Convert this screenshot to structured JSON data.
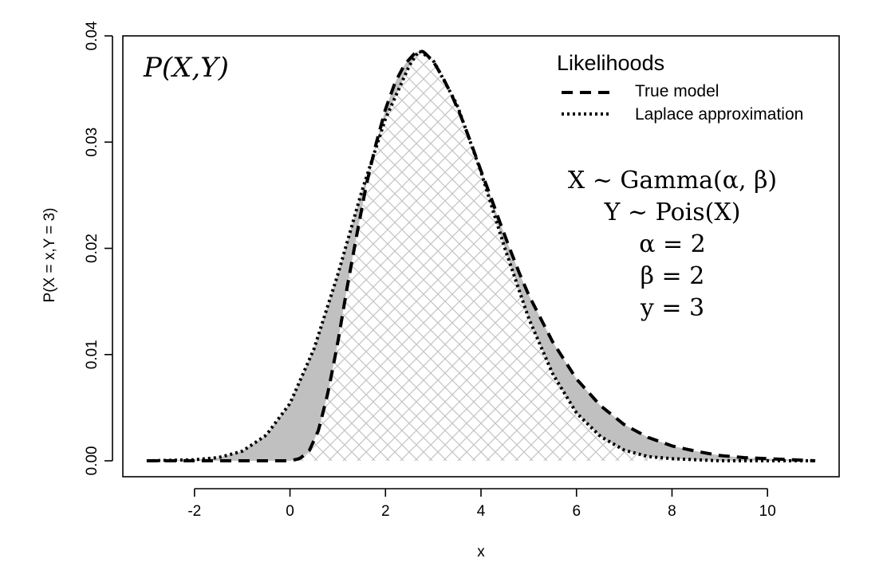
{
  "chart_data": {
    "type": "line",
    "title": "",
    "xlabel": "x",
    "ylabel": "P(X = x,Y = 3)",
    "xlim": [
      -3.5,
      11.5
    ],
    "ylim": [
      -0.0015,
      0.04
    ],
    "x_ticks": [
      "-2",
      "0",
      "2",
      "4",
      "6",
      "8",
      "10"
    ],
    "x_tick_values": [
      -2,
      0,
      2,
      4,
      6,
      8,
      10
    ],
    "y_ticks": [
      "0.00",
      "0.01",
      "0.02",
      "0.03",
      "0.04"
    ],
    "y_tick_values": [
      0,
      0.01,
      0.02,
      0.03,
      0.04
    ],
    "grid": false,
    "series": [
      {
        "name": "True model",
        "style": "dashed",
        "x": [
          -3,
          -2,
          -1,
          0,
          0.2,
          0.4,
          0.6,
          0.8,
          1.0,
          1.2,
          1.4,
          1.6,
          1.8,
          2.0,
          2.2,
          2.4,
          2.6,
          2.7,
          2.8,
          3.0,
          3.2,
          3.4,
          3.6,
          3.8,
          4.0,
          4.2,
          4.4,
          4.6,
          4.8,
          5.0,
          5.5,
          6.0,
          6.5,
          7.0,
          7.5,
          8.0,
          8.5,
          9.0,
          9.5,
          10.0,
          10.5,
          11.0
        ],
        "y": [
          0,
          0,
          0,
          0,
          0.0002,
          0.0009,
          0.0029,
          0.0065,
          0.0111,
          0.0164,
          0.0213,
          0.026,
          0.0298,
          0.0331,
          0.0356,
          0.0373,
          0.0383,
          0.0386,
          0.0385,
          0.0376,
          0.0361,
          0.0343,
          0.0322,
          0.0298,
          0.0273,
          0.0249,
          0.0224,
          0.02,
          0.0177,
          0.0156,
          0.0112,
          0.0077,
          0.0052,
          0.0034,
          0.0022,
          0.0014,
          0.0009,
          0.0005,
          0.0003,
          0.0002,
          0.0001,
          0
        ]
      },
      {
        "name": "Laplace approximation",
        "style": "dotted",
        "x": [
          -3,
          -2,
          -1.5,
          -1,
          -0.5,
          0,
          0.5,
          1.0,
          1.5,
          2.0,
          2.5,
          2.7,
          3.0,
          3.5,
          4.0,
          4.5,
          5.0,
          5.5,
          6.0,
          6.5,
          7.0,
          7.5,
          8.0,
          9.0,
          10.0,
          11.0
        ],
        "y": [
          0,
          0.0001,
          0.0003,
          0.0009,
          0.0024,
          0.0054,
          0.0105,
          0.0175,
          0.0253,
          0.0322,
          0.0372,
          0.0386,
          0.0377,
          0.0335,
          0.0272,
          0.02,
          0.0134,
          0.0082,
          0.0045,
          0.0023,
          0.001,
          0.0004,
          0.0002,
          0,
          0,
          0
        ]
      }
    ],
    "legend": {
      "title": "Likelihoods",
      "position": "top-right",
      "entries": [
        {
          "label": "True model",
          "style": "dashed"
        },
        {
          "label": "Laplace approximation",
          "style": "dotted"
        }
      ]
    },
    "annotations": {
      "top_left": "P(X,Y)",
      "model_lines": [
        "X ~ Gamma(α, β)",
        "Y ~ Pois(X)",
        "α = 2",
        "β = 2",
        "y = 3"
      ]
    }
  }
}
